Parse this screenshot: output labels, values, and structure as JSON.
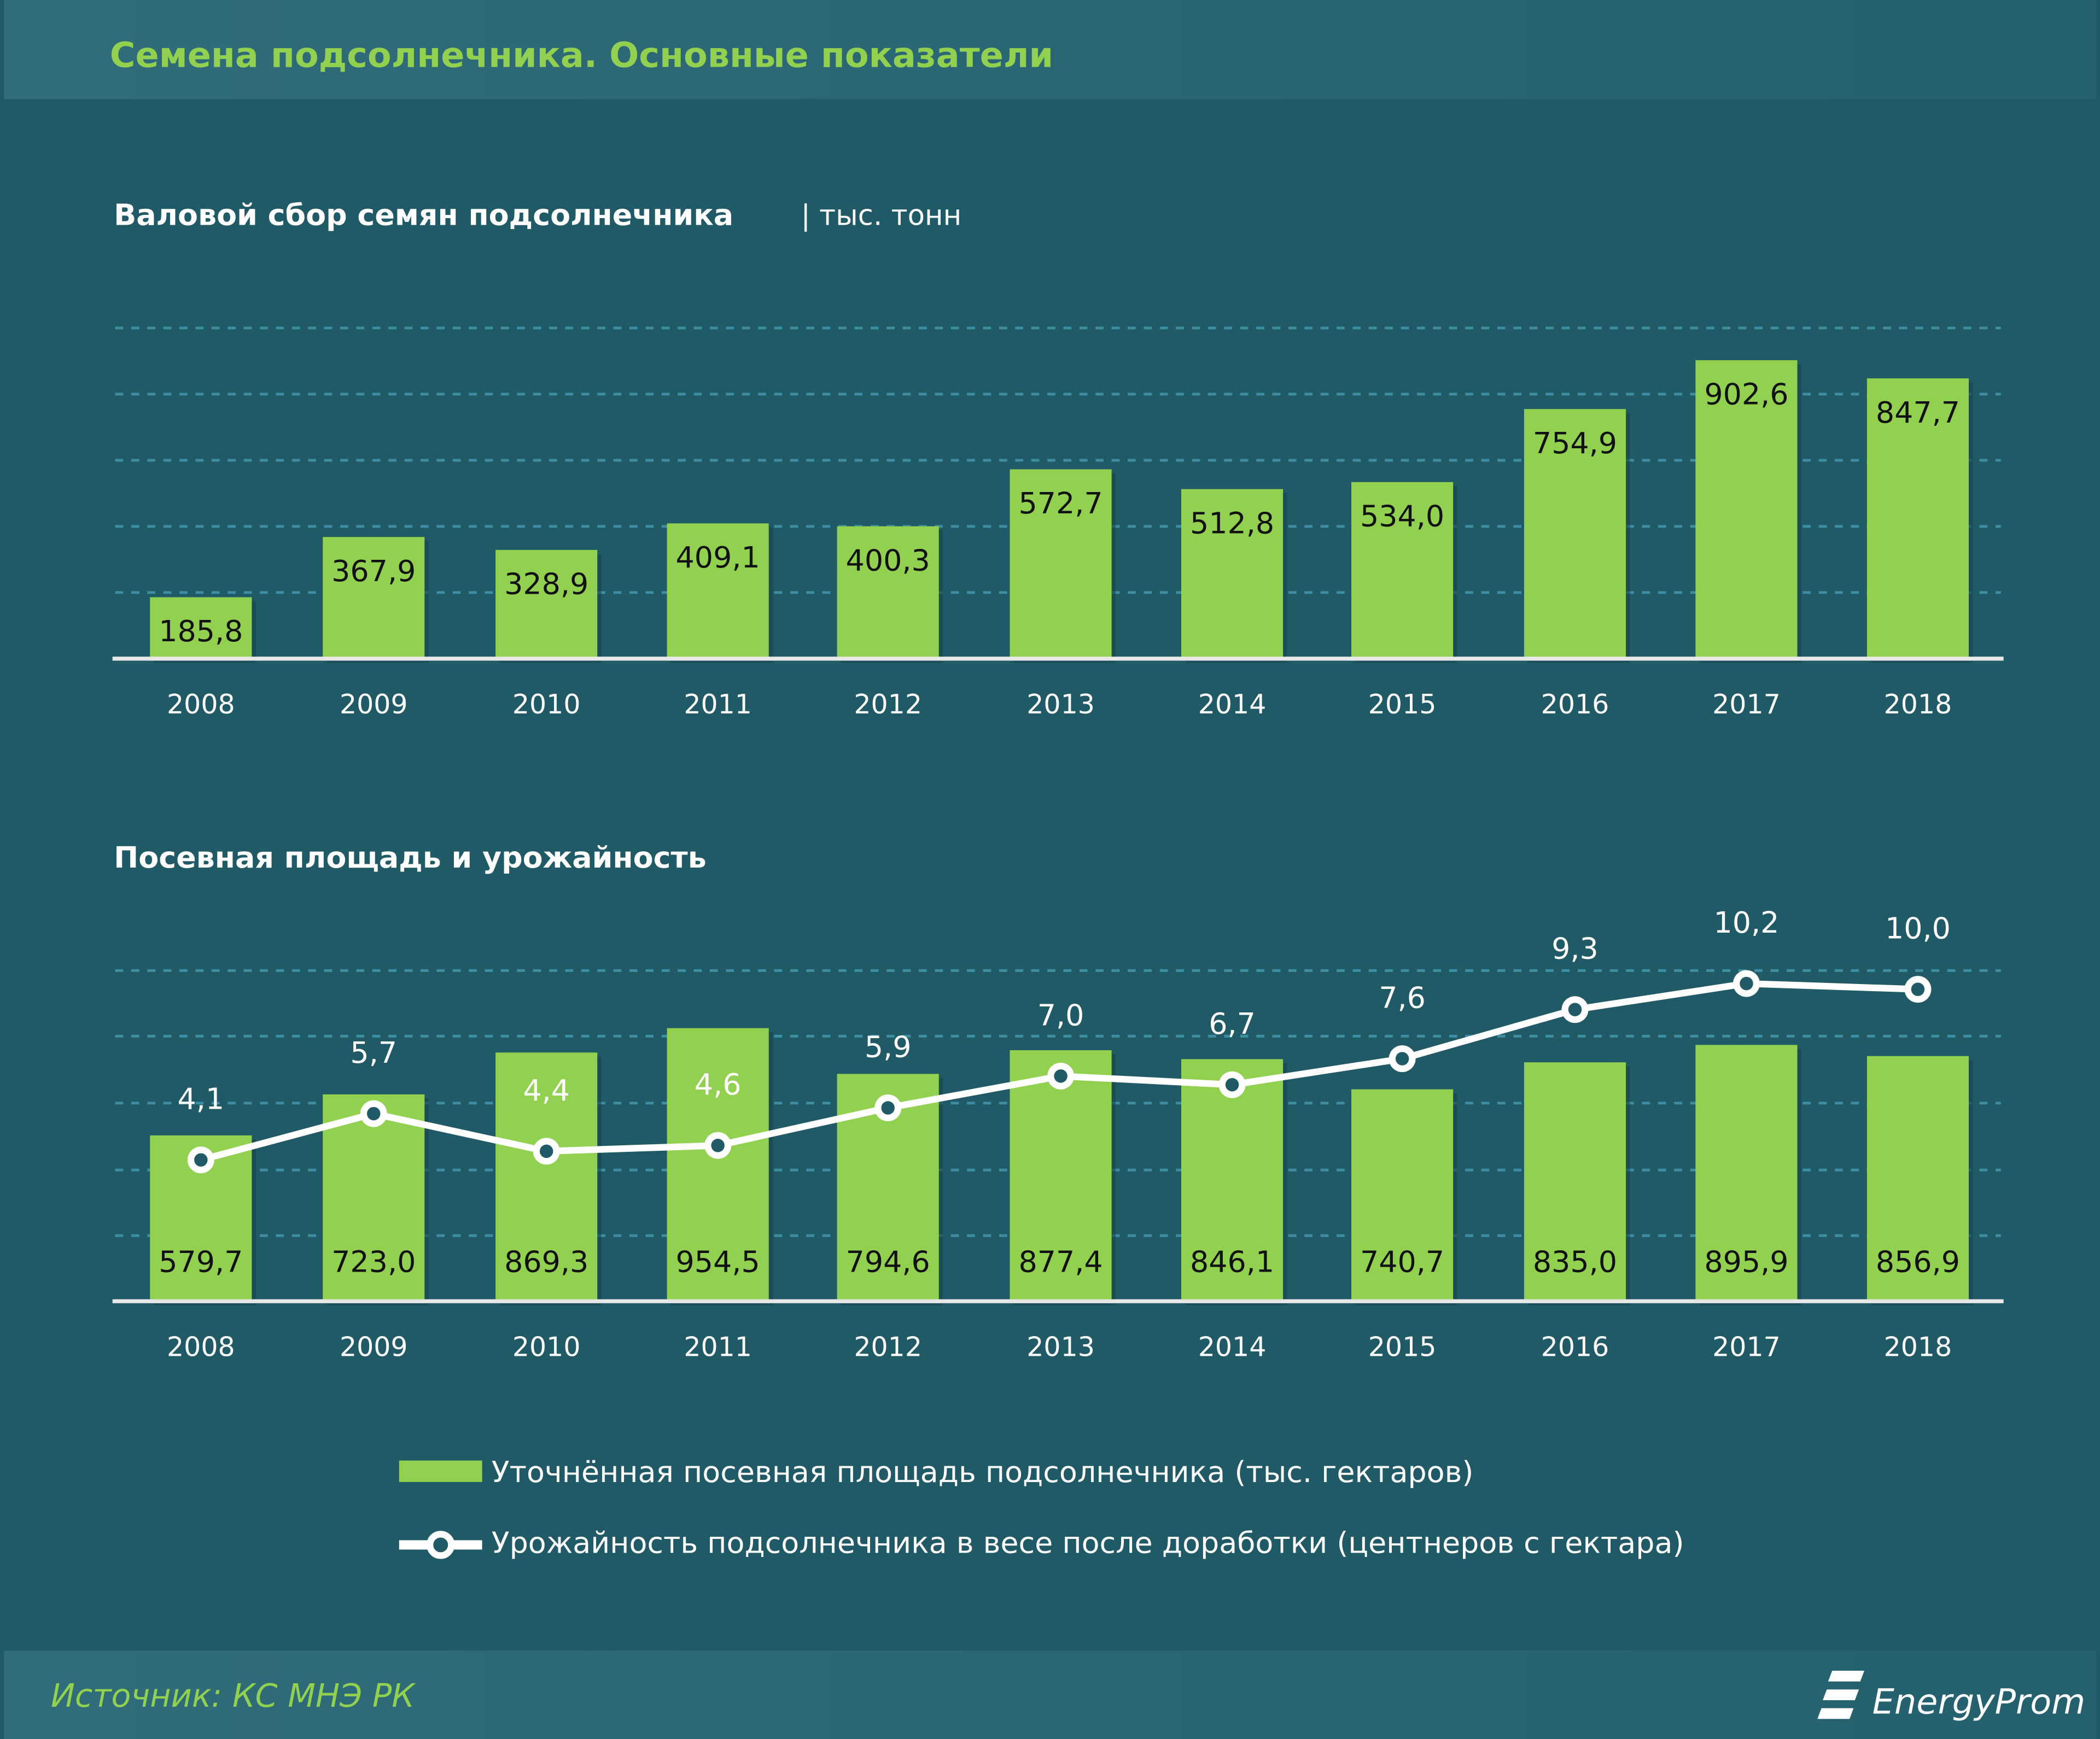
{
  "header": {
    "title": "Семена подсолнечника. Основные показатели"
  },
  "footer": {
    "source": "Источник: КС МНЭ РК",
    "logo": "EnergyProm"
  },
  "colors": {
    "background": "#215a67",
    "header_bg": "#2d6776",
    "bar": "#92d050",
    "title": "#92d050",
    "line": "#ffffff",
    "text": "#ffffff"
  },
  "chart_data": [
    {
      "type": "bar",
      "title": "Валовой сбор семян подсолнечника",
      "unit": "| тыс. тонн",
      "categories": [
        "2008",
        "2009",
        "2010",
        "2011",
        "2012",
        "2013",
        "2014",
        "2015",
        "2016",
        "2017",
        "2018"
      ],
      "values": [
        185.8,
        367.9,
        328.9,
        409.1,
        400.3,
        572.7,
        512.8,
        534.0,
        754.9,
        902.6,
        847.7
      ],
      "labels": [
        "185,8",
        "367,9",
        "328,9",
        "409,1",
        "400,3",
        "572,7",
        "512,8",
        "534,0",
        "754,9",
        "902,6",
        "847,7"
      ],
      "ylim": [
        0,
        1000
      ],
      "grid": true
    },
    {
      "type": "bar+line",
      "title": "Посевная площадь и урожайность",
      "categories": [
        "2008",
        "2009",
        "2010",
        "2011",
        "2012",
        "2013",
        "2014",
        "2015",
        "2016",
        "2017",
        "2018"
      ],
      "series": [
        {
          "name": "Уточнённая посевная площадь подсолнечника (тыс. гектаров)",
          "type": "bar",
          "values": [
            579.7,
            723.0,
            869.3,
            954.5,
            794.6,
            877.4,
            846.1,
            740.7,
            835.0,
            895.9,
            856.9
          ],
          "labels": [
            "579,7",
            "723,0",
            "869,3",
            "954,5",
            "794,6",
            "877,4",
            "846,1",
            "740,7",
            "835,0",
            "895,9",
            "856,9"
          ]
        },
        {
          "name": "Урожайность подсолнечника в весе после доработки (центнеров с гектара)",
          "type": "line",
          "values": [
            4.1,
            5.7,
            4.4,
            4.6,
            5.9,
            7.0,
            6.7,
            7.6,
            9.3,
            10.2,
            10.0
          ],
          "labels": [
            "4,1",
            "5,7",
            "4,4",
            "4,6",
            "5,9",
            "7,0",
            "6,7",
            "7,6",
            "9,3",
            "10,2",
            "10,0"
          ]
        }
      ],
      "legend": "bottom",
      "grid": true
    }
  ]
}
